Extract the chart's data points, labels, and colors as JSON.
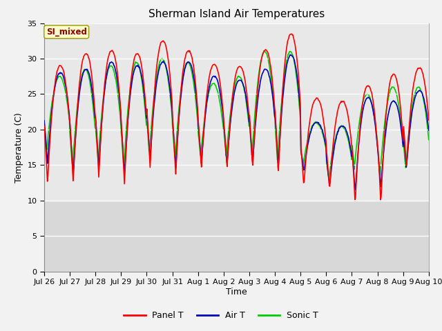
{
  "title": "Sherman Island Air Temperatures",
  "xlabel": "Time",
  "ylabel": "Temperature (C)",
  "ylim": [
    0,
    35
  ],
  "annotation_text": "SI_mixed",
  "annotation_color": "#8B0000",
  "annotation_bg": "#FFFFCC",
  "plot_bg_upper": "#e8e8e8",
  "plot_bg_lower": "#d8d8d8",
  "legend_labels": [
    "Panel T",
    "Air T",
    "Sonic T"
  ],
  "legend_colors": [
    "#ff0000",
    "#0000bb",
    "#00cc00"
  ],
  "tick_labels": [
    "Jul 26",
    "Jul 27",
    "Jul 28",
    "Jul 29",
    "Jul 30",
    "Jul 31",
    "Aug 1",
    "Aug 2",
    "Aug 3",
    "Aug 4",
    "Aug 5",
    "Aug 6",
    "Aug 7",
    "Aug 8",
    "Aug 9",
    "Aug 10"
  ],
  "air_t_color": "#0000bb",
  "panel_t_color": "#ff0000",
  "sonic_t_color": "#00cc00",
  "linewidth": 1.2,
  "n_days": 15,
  "panel_peaks": [
    29.0,
    30.7,
    31.1,
    30.7,
    32.5,
    31.1,
    29.2,
    28.9,
    31.2,
    33.5,
    24.4,
    24.0,
    26.2,
    27.8,
    28.7
  ],
  "panel_troughs": [
    12.3,
    12.5,
    13.2,
    12.3,
    14.5,
    13.5,
    14.5,
    14.5,
    14.5,
    13.5,
    12.0,
    11.5,
    9.5,
    9.5,
    14.5
  ],
  "air_peaks": [
    28.0,
    28.5,
    29.5,
    29.0,
    29.5,
    29.5,
    27.5,
    27.0,
    28.5,
    30.5,
    21.0,
    20.5,
    24.5,
    24.0,
    25.5
  ],
  "air_troughs": [
    15.0,
    13.5,
    14.5,
    13.5,
    15.5,
    14.5,
    15.0,
    15.0,
    15.0,
    14.5,
    14.0,
    12.0,
    11.0,
    11.5,
    14.5
  ],
  "sonic_peaks": [
    27.5,
    28.5,
    29.0,
    29.5,
    30.0,
    29.5,
    26.5,
    27.5,
    31.0,
    31.0,
    21.0,
    20.5,
    25.0,
    26.0,
    26.0
  ],
  "sonic_troughs": [
    17.0,
    14.5,
    15.5,
    14.5,
    16.5,
    15.5,
    16.0,
    16.0,
    16.0,
    15.5,
    15.0,
    13.0,
    14.5,
    13.5,
    14.5
  ]
}
